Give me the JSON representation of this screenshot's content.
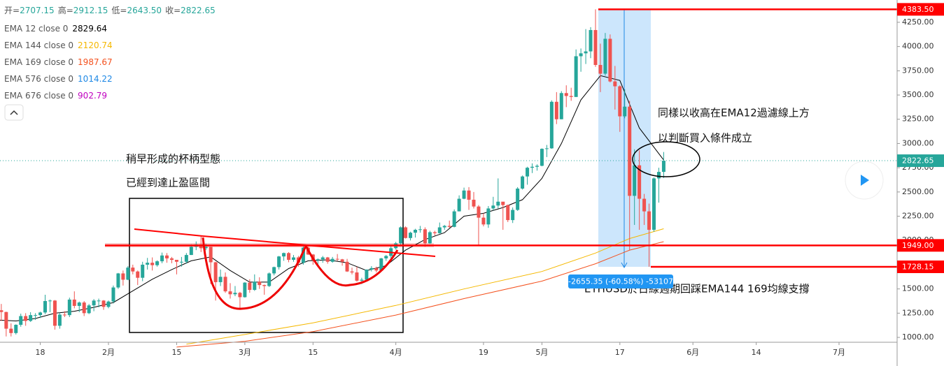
{
  "chart_data": {
    "type": "candlestick",
    "ohlc_header": {
      "labels": [
        "开=",
        "高=",
        "低=",
        "收="
      ],
      "values": [
        2707.15,
        2912.15,
        2643.5,
        2822.65
      ],
      "value_labels": [
        "2707.15",
        "2912.15",
        "2643.50",
        "2822.65"
      ]
    },
    "x": [
      "01-09",
      "01-10",
      "01-11",
      "01-12",
      "01-13",
      "01-14",
      "01-15",
      "01-16",
      "01-17",
      "01-18",
      "01-19",
      "01-20",
      "01-21",
      "01-22",
      "01-23",
      "01-24",
      "01-25",
      "01-26",
      "01-27",
      "01-28",
      "01-29",
      "01-30",
      "01-31",
      "02-01",
      "02-02",
      "02-03",
      "02-04",
      "02-05",
      "02-06",
      "02-07",
      "02-08",
      "02-09",
      "02-10",
      "02-11",
      "02-12",
      "02-13",
      "02-14",
      "02-15",
      "02-16",
      "02-17",
      "02-18",
      "02-19",
      "02-20",
      "02-21",
      "02-22",
      "02-23",
      "02-24",
      "02-25",
      "02-26",
      "02-27",
      "02-28",
      "03-01",
      "03-02",
      "03-03",
      "03-04",
      "03-05",
      "03-06",
      "03-07",
      "03-08",
      "03-09",
      "03-10",
      "03-11",
      "03-12",
      "03-13",
      "03-14",
      "03-15",
      "03-16",
      "03-17",
      "03-18",
      "03-19",
      "03-20",
      "03-21",
      "03-22",
      "03-23",
      "03-24",
      "03-25",
      "03-26",
      "03-27",
      "03-28",
      "03-29",
      "03-30",
      "03-31",
      "04-01",
      "04-02",
      "04-03",
      "04-04",
      "04-05",
      "04-06",
      "04-07",
      "04-08",
      "04-09",
      "04-10",
      "04-11",
      "04-12",
      "04-13",
      "04-14",
      "04-15",
      "04-16",
      "04-17",
      "04-18",
      "04-19",
      "04-20",
      "04-21",
      "04-22",
      "04-23",
      "04-24",
      "04-25",
      "04-26",
      "04-27",
      "04-28",
      "04-29",
      "04-30",
      "05-01",
      "05-02",
      "05-03",
      "05-04",
      "05-05",
      "05-06",
      "05-07",
      "05-08",
      "05-09",
      "05-10",
      "05-11",
      "05-12",
      "05-13",
      "05-14",
      "05-15",
      "05-16",
      "05-17",
      "05-18",
      "05-19",
      "05-20",
      "05-21",
      "05-22",
      "05-23",
      "05-24",
      "05-25",
      "05-26"
    ],
    "open": [
      1220,
      1280,
      1262,
      1090,
      1045,
      1130,
      1220,
      1170,
      1230,
      1230,
      1257,
      1375,
      1380,
      1120,
      1235,
      1230,
      1390,
      1325,
      1360,
      1250,
      1330,
      1380,
      1380,
      1315,
      1370,
      1515,
      1660,
      1595,
      1720,
      1680,
      1615,
      1750,
      1770,
      1745,
      1785,
      1845,
      1815,
      1800,
      1780,
      1780,
      1850,
      1935,
      1960,
      1920,
      1935,
      1775,
      1570,
      1625,
      1475,
      1445,
      1460,
      1415,
      1565,
      1490,
      1575,
      1540,
      1530,
      1660,
      1725,
      1835,
      1870,
      1800,
      1825,
      1770,
      1925,
      1855,
      1795,
      1805,
      1825,
      1780,
      1810,
      1805,
      1780,
      1680,
      1670,
      1585,
      1595,
      1700,
      1715,
      1690,
      1815,
      1840,
      1920,
      1970,
      2135,
      2025,
      2080,
      2110,
      2115,
      1970,
      2085,
      2075,
      2135,
      2150,
      2140,
      2300,
      2430,
      2515,
      2420,
      2350,
      2235,
      2165,
      2330,
      2360,
      2400,
      2365,
      2210,
      2315,
      2535,
      2660,
      2750,
      2760,
      2770,
      2945,
      2950,
      3430,
      3250,
      3520,
      3490,
      3480,
      3900,
      3930,
      3950,
      4170,
      3810,
      3720,
      4080,
      3640,
      3590,
      3280,
      3380,
      2460,
      2775,
      2430,
      2300,
      2110,
      2640,
      2707.15
    ],
    "high": [
      1300,
      1345,
      1265,
      1145,
      1135,
      1245,
      1250,
      1260,
      1250,
      1265,
      1440,
      1390,
      1385,
      1255,
      1270,
      1410,
      1475,
      1370,
      1375,
      1345,
      1395,
      1400,
      1385,
      1380,
      1535,
      1665,
      1690,
      1735,
      1750,
      1690,
      1780,
      1820,
      1825,
      1795,
      1875,
      1870,
      1830,
      1800,
      1830,
      1870,
      1960,
      1990,
      2040,
      1965,
      1935,
      1780,
      1700,
      1670,
      1560,
      1530,
      1470,
      1570,
      1600,
      1650,
      1620,
      1545,
      1670,
      1730,
      1840,
      1875,
      1880,
      1850,
      1840,
      1950,
      1935,
      1860,
      1815,
      1840,
      1830,
      1830,
      1860,
      1810,
      1810,
      1720,
      1730,
      1615,
      1700,
      1735,
      1730,
      1820,
      1850,
      1945,
      1985,
      2145,
      2145,
      2090,
      2120,
      2150,
      2135,
      2100,
      2100,
      2185,
      2160,
      2205,
      2320,
      2465,
      2545,
      2550,
      2500,
      2365,
      2280,
      2355,
      2450,
      2640,
      2380,
      2370,
      2340,
      2550,
      2670,
      2760,
      2795,
      2785,
      2950,
      2985,
      3445,
      3530,
      3540,
      3600,
      3575,
      3970,
      3980,
      4180,
      4200,
      4383.5,
      4030,
      4140,
      4125,
      3800,
      3600,
      3560,
      3440,
      2940,
      2930,
      2480,
      2380,
      2650,
      2750,
      2912.15
    ],
    "low": [
      1200,
      1170,
      1010,
      1010,
      1030,
      1110,
      1120,
      1160,
      1180,
      1200,
      1240,
      1260,
      1080,
      1090,
      1210,
      1210,
      1300,
      1260,
      1220,
      1240,
      1270,
      1310,
      1285,
      1300,
      1350,
      1500,
      1535,
      1590,
      1650,
      1540,
      1580,
      1700,
      1690,
      1730,
      1765,
      1770,
      1765,
      1650,
      1730,
      1760,
      1850,
      1900,
      1880,
      1900,
      1550,
      1380,
      1530,
      1460,
      1400,
      1425,
      1295,
      1410,
      1460,
      1480,
      1500,
      1440,
      1520,
      1640,
      1700,
      1790,
      1775,
      1780,
      1730,
      1750,
      1850,
      1750,
      1735,
      1770,
      1760,
      1770,
      1790,
      1740,
      1675,
      1650,
      1575,
      1550,
      1590,
      1680,
      1670,
      1680,
      1790,
      1790,
      1905,
      1955,
      2020,
      2000,
      2030,
      2080,
      1935,
      1965,
      2050,
      2070,
      2110,
      2130,
      2135,
      2300,
      2425,
      2315,
      2330,
      1950,
      2145,
      2130,
      2310,
      2330,
      2110,
      2190,
      2180,
      2305,
      2525,
      2575,
      2695,
      2720,
      2765,
      2860,
      2945,
      3200,
      3250,
      3375,
      3440,
      3480,
      3740,
      3820,
      3880,
      3790,
      3530,
      3700,
      3630,
      3350,
      3120,
      3260,
      1900,
      2160,
      2110,
      2160,
      1728.15,
      2090,
      2390,
      2643.5
    ],
    "close": [
      1280,
      1262,
      1090,
      1045,
      1130,
      1220,
      1170,
      1230,
      1230,
      1257,
      1375,
      1380,
      1120,
      1235,
      1230,
      1390,
      1325,
      1360,
      1250,
      1330,
      1380,
      1380,
      1315,
      1370,
      1515,
      1660,
      1595,
      1720,
      1680,
      1615,
      1750,
      1770,
      1745,
      1785,
      1845,
      1815,
      1800,
      1780,
      1780,
      1850,
      1935,
      1960,
      1920,
      1935,
      1775,
      1570,
      1625,
      1475,
      1445,
      1460,
      1415,
      1565,
      1490,
      1575,
      1540,
      1530,
      1660,
      1725,
      1835,
      1870,
      1800,
      1825,
      1770,
      1925,
      1855,
      1795,
      1805,
      1825,
      1780,
      1810,
      1805,
      1780,
      1680,
      1670,
      1585,
      1595,
      1700,
      1715,
      1690,
      1815,
      1840,
      1920,
      1970,
      2135,
      2025,
      2080,
      2110,
      2115,
      1970,
      2085,
      2075,
      2135,
      2150,
      2140,
      2300,
      2430,
      2515,
      2420,
      2350,
      2235,
      2165,
      2330,
      2360,
      2400,
      2365,
      2210,
      2315,
      2535,
      2660,
      2750,
      2760,
      2770,
      2945,
      2950,
      3430,
      3250,
      3520,
      3490,
      3480,
      3900,
      3930,
      3950,
      4170,
      3810,
      3720,
      4080,
      3640,
      3590,
      3280,
      3380,
      2460,
      2775,
      2430,
      2300,
      2110,
      2640,
      2707.15,
      2822.65
    ],
    "up_color": "#26a69a",
    "down_color": "#ef5350",
    "ema": [
      {
        "name": "EMA 12 close 0",
        "color": "#000000",
        "x": [
          "01-09",
          "01-13",
          "01-17",
          "01-21",
          "01-25",
          "01-29",
          "02-02",
          "02-06",
          "02-10",
          "02-14",
          "02-18",
          "02-22",
          "02-26",
          "03-02",
          "03-06",
          "03-10",
          "03-14",
          "03-18",
          "03-22",
          "03-26",
          "03-30",
          "04-03",
          "04-07",
          "04-11",
          "04-15",
          "04-19",
          "04-23",
          "04-27",
          "05-01",
          "05-05",
          "05-09",
          "05-13",
          "05-17",
          "05-21",
          "05-26"
        ],
        "values": [
          1180,
          1170,
          1195,
          1250,
          1270,
          1310,
          1360,
          1480,
          1600,
          1700,
          1790,
          1830,
          1690,
          1570,
          1570,
          1710,
          1790,
          1800,
          1770,
          1690,
          1740,
          1900,
          2010,
          2080,
          2250,
          2280,
          2340,
          2420,
          2640,
          3000,
          3450,
          3700,
          3650,
          3160,
          2829.64
        ]
      },
      {
        "name": "EMA 144 close 0",
        "color": "#f5b800",
        "x": [
          "02-17",
          "03-01",
          "03-15",
          "04-01",
          "04-15",
          "05-01",
          "05-12",
          "05-19",
          "05-26"
        ],
        "values": [
          930,
          1030,
          1150,
          1330,
          1500,
          1680,
          1870,
          2020,
          2120.74
        ]
      },
      {
        "name": "EMA 169 close 0",
        "color": "#f4511e",
        "x": [
          "02-15",
          "03-01",
          "03-15",
          "04-01",
          "04-15",
          "05-01",
          "05-12",
          "05-19",
          "05-26"
        ],
        "values": [
          900,
          960,
          1060,
          1230,
          1400,
          1580,
          1760,
          1900,
          1987.67
        ]
      },
      {
        "name": "EMA 576 close 0",
        "color": "#1e88e5",
        "x": [
          "05-26"
        ],
        "values": [
          1014.22
        ]
      },
      {
        "name": "EMA 676 close 0",
        "color": "#c000c0",
        "x": [
          "05-26"
        ],
        "values": [
          902.79
        ]
      }
    ],
    "ylim": [
      950,
      4480
    ],
    "yticks": [
      {
        "value": 1000,
        "label": "1000.00"
      },
      {
        "value": 1250,
        "label": "1250.00"
      },
      {
        "value": 1500,
        "label": "1500.00"
      },
      {
        "value": 1750,
        "label": "1750.00"
      },
      {
        "value": 2000,
        "label": "2000.00"
      },
      {
        "value": 2250,
        "label": "2250.00"
      },
      {
        "value": 2500,
        "label": "2500.00"
      },
      {
        "value": 2750,
        "label": "2750.00"
      },
      {
        "value": 3000,
        "label": "3000.00"
      },
      {
        "value": 3250,
        "label": "3250.00"
      },
      {
        "value": 3500,
        "label": "3500.00"
      },
      {
        "value": 3750,
        "label": "3750.00"
      },
      {
        "value": 4000,
        "label": "4000.00"
      },
      {
        "value": 4250,
        "label": "4250.00"
      }
    ],
    "xticks": [
      {
        "value": "01-18",
        "label": "18"
      },
      {
        "value": "02-01",
        "label": "2月"
      },
      {
        "value": "02-15",
        "label": "15"
      },
      {
        "value": "03-01",
        "label": "3月"
      },
      {
        "value": "03-15",
        "label": "15"
      },
      {
        "value": "04-01",
        "label": "4月"
      },
      {
        "value": "04-19",
        "label": "19"
      },
      {
        "value": "05-01",
        "label": "5月"
      },
      {
        "value": "05-17",
        "label": "17"
      },
      {
        "value": "06-01",
        "label": "6月"
      },
      {
        "value": "06-14",
        "label": "14"
      },
      {
        "value": "07-01",
        "label": "7月"
      }
    ],
    "levels": [
      {
        "value": 4383.5,
        "label": "4383.50",
        "color": "#ff0000"
      },
      {
        "value": 1949,
        "label": "1949.00",
        "color": "#ff0000"
      },
      {
        "value": 1728.15,
        "label": "1728.15",
        "color": "#ff0000"
      }
    ],
    "measure_label": "-2655.35 (-60.58%) -53107",
    "annotations": [
      "稍早形成的杯柄型態",
      "已經到達止盈區間",
      "同樣以收高在EMA12過濾線上方",
      "以判斷買入條件成立",
      "ETHUSD於日線週期回踩EMA144 169均線支撐"
    ]
  }
}
